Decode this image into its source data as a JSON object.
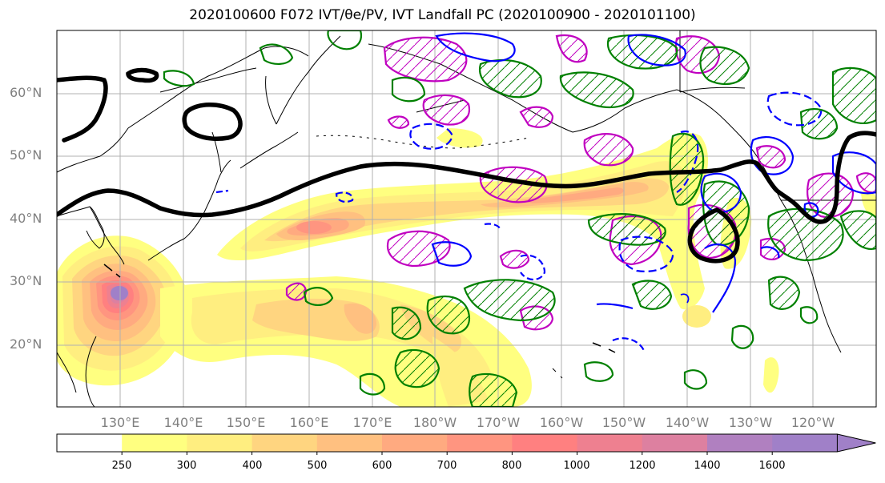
{
  "title": "2020100600 F072 IVT/θe/PV, IVT Landfall PC (2020100900 - 2020101100)",
  "map": {
    "extent": {
      "lon_min": 120,
      "lon_max": 250,
      "lat_min": 10,
      "lat_max": 70
    },
    "lat_ticks": [
      {
        "label": "60°N",
        "lat": 60
      },
      {
        "label": "50°N",
        "lat": 50
      },
      {
        "label": "40°N",
        "lat": 40
      },
      {
        "label": "30°N",
        "lat": 30
      },
      {
        "label": "20°N",
        "lat": 20
      }
    ],
    "lon_ticks": [
      {
        "label": "130°E",
        "lon": 130
      },
      {
        "label": "140°E",
        "lon": 140
      },
      {
        "label": "150°E",
        "lon": 150
      },
      {
        "label": "160°E",
        "lon": 160
      },
      {
        "label": "170°E",
        "lon": 170
      },
      {
        "label": "180°W",
        "lon": 180
      },
      {
        "label": "170°W",
        "lon": 190
      },
      {
        "label": "160°W",
        "lon": 200
      },
      {
        "label": "150°W",
        "lon": 210
      },
      {
        "label": "140°W",
        "lon": 220
      },
      {
        "label": "130°W",
        "lon": 230
      },
      {
        "label": "120°W",
        "lon": 240
      }
    ],
    "colors": {
      "theta_e_contour": "#000000",
      "pv_positive": "#008000",
      "pv_negative": "#0000ff",
      "landfall_pc": "#c000c0",
      "coastline": "#000000",
      "grid": "#b0b0b0"
    }
  },
  "colorbar": {
    "levels": [
      "250",
      "300",
      "400",
      "500",
      "600",
      "700",
      "800",
      "1000",
      "1200",
      "1400",
      "1600"
    ],
    "colors": [
      "#ffffff",
      "#ffff80",
      "#ffee80",
      "#ffd580",
      "#ffc080",
      "#ffaa80",
      "#ff9580",
      "#ff8080",
      "#ee8090",
      "#dd80a0",
      "#b080c0",
      "#a080c8"
    ]
  }
}
